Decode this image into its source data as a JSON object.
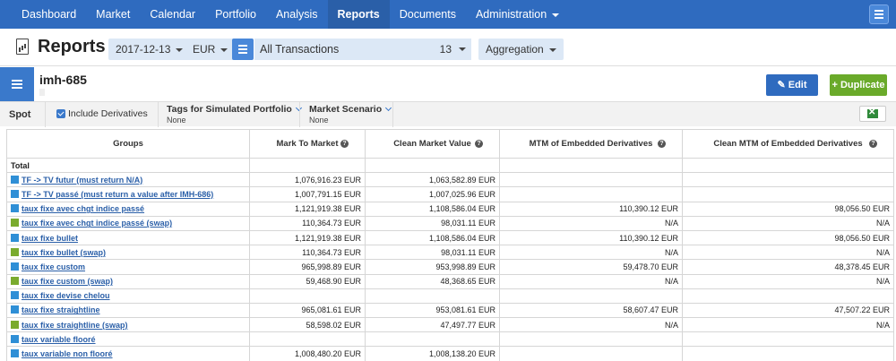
{
  "nav": {
    "items": [
      "Dashboard",
      "Market",
      "Calendar",
      "Portfolio",
      "Analysis",
      "Reports",
      "Documents",
      "Administration"
    ],
    "active": "Reports"
  },
  "header": {
    "title": "Reports",
    "date": "2017-12-13",
    "currency": "EUR",
    "transactions": "All Transactions",
    "transactions_count": "13",
    "aggregation": "Aggregation"
  },
  "report": {
    "name": "imh-685",
    "edit_label": "Edit",
    "duplicate_label": "Duplicate"
  },
  "filters": {
    "spot": "Spot",
    "include_derivatives": "Include Derivatives",
    "tags_label": "Tags for Simulated Portfolio",
    "tags_value": "None",
    "scenario_label": "Market Scenario",
    "scenario_value": "None"
  },
  "colors": {
    "blue": "#2f8fd6",
    "green": "#7aab2e"
  },
  "table": {
    "headers": [
      "Groups",
      "Mark To Market",
      "Clean Market Value",
      "MTM of Embedded Derivatives",
      "Clean MTM of Embedded Derivatives"
    ],
    "total_label": "Total",
    "rows": [
      {
        "name": "TF -> TV futur (must return N/A)",
        "color": "blue",
        "mtm": "1,076,916.23 EUR",
        "cmv": "1,063,582.89 EUR",
        "emb": "",
        "cemb": ""
      },
      {
        "name": "TF -> TV passé (must return a value after IMH-686)",
        "color": "blue",
        "mtm": "1,007,791.15 EUR",
        "cmv": "1,007,025.96 EUR",
        "emb": "",
        "cemb": ""
      },
      {
        "name": "taux fixe avec chgt indice passé",
        "color": "blue",
        "mtm": "1,121,919.38 EUR",
        "cmv": "1,108,586.04 EUR",
        "emb": "110,390.12 EUR",
        "cemb": "98,056.50 EUR"
      },
      {
        "name": "taux fixe avec chgt indice passé (swap)",
        "color": "green",
        "mtm": "110,364.73 EUR",
        "cmv": "98,031.11 EUR",
        "emb": "N/A",
        "cemb": "N/A"
      },
      {
        "name": "taux fixe bullet",
        "color": "blue",
        "mtm": "1,121,919.38 EUR",
        "cmv": "1,108,586.04 EUR",
        "emb": "110,390.12 EUR",
        "cemb": "98,056.50 EUR"
      },
      {
        "name": "taux fixe bullet (swap)",
        "color": "green",
        "mtm": "110,364.73 EUR",
        "cmv": "98,031.11 EUR",
        "emb": "N/A",
        "cemb": "N/A"
      },
      {
        "name": "taux fixe custom",
        "color": "blue",
        "mtm": "965,998.89 EUR",
        "cmv": "953,998.89 EUR",
        "emb": "59,478.70 EUR",
        "cemb": "48,378.45 EUR"
      },
      {
        "name": "taux fixe custom (swap)",
        "color": "green",
        "mtm": "59,468.90 EUR",
        "cmv": "48,368.65 EUR",
        "emb": "N/A",
        "cemb": "N/A"
      },
      {
        "name": "taux fixe devise chelou",
        "color": "blue",
        "mtm": "",
        "cmv": "",
        "emb": "",
        "cemb": ""
      },
      {
        "name": "taux fixe straightline",
        "color": "blue",
        "mtm": "965,081.61 EUR",
        "cmv": "953,081.61 EUR",
        "emb": "58,607.47 EUR",
        "cemb": "47,507.22 EUR"
      },
      {
        "name": "taux fixe straightline (swap)",
        "color": "green",
        "mtm": "58,598.02 EUR",
        "cmv": "47,497.77 EUR",
        "emb": "N/A",
        "cemb": "N/A"
      },
      {
        "name": "taux variable flooré",
        "color": "blue",
        "mtm": "",
        "cmv": "",
        "emb": "",
        "cemb": ""
      },
      {
        "name": "taux variable non flooré",
        "color": "blue",
        "mtm": "1,008,480.20 EUR",
        "cmv": "1,008,138.20 EUR",
        "emb": "",
        "cemb": ""
      }
    ]
  }
}
